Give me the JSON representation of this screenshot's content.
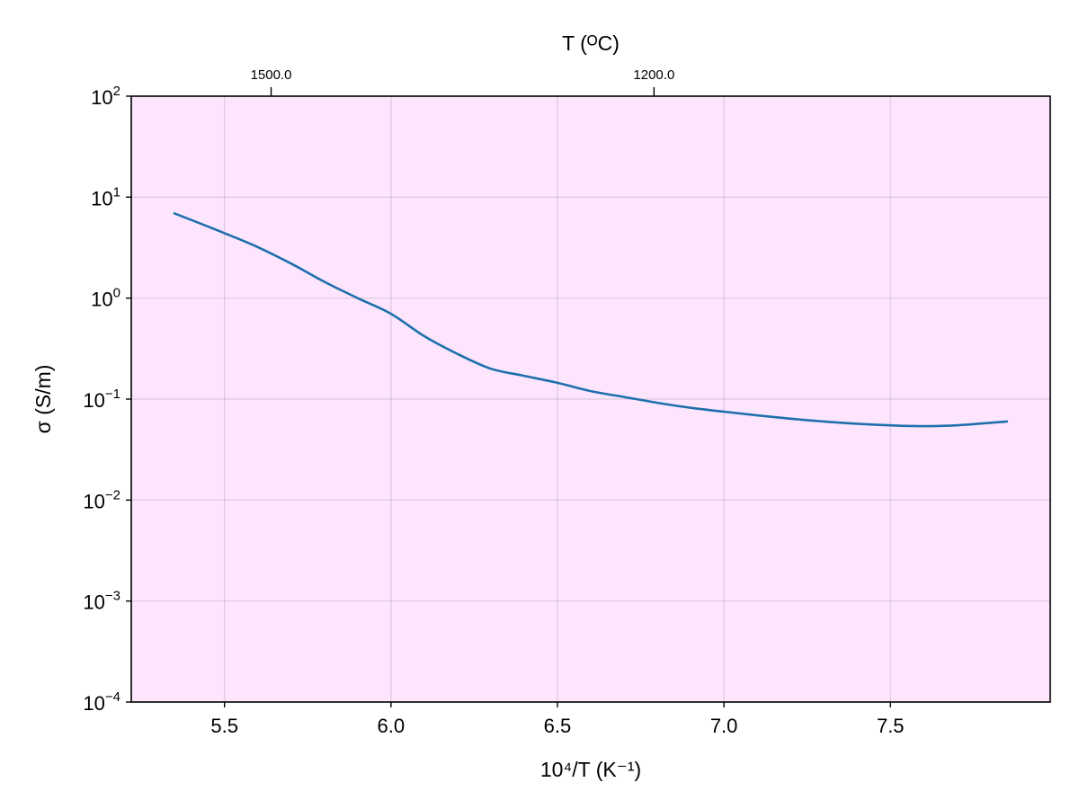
{
  "chart_data": {
    "type": "line",
    "xlabel": "10⁴/T (K⁻¹)",
    "ylabel": "σ (S/m)",
    "top_axis_label": "T (ᴼC)",
    "xlim": [
      5.22,
      7.98
    ],
    "ylim": [
      0.0001,
      100
    ],
    "yscale": "log",
    "grid": true,
    "plot_background": "#fde6fd",
    "line_color": "#1f6fad",
    "x_ticks": [
      5.5,
      6.0,
      6.5,
      7.0,
      7.5
    ],
    "x_tick_labels": [
      "5.5",
      "6.0",
      "6.5",
      "7.0",
      "7.5"
    ],
    "y_ticks": [
      0.0001,
      0.001,
      0.01,
      0.1,
      1,
      10,
      100
    ],
    "y_tick_labels": [
      {
        "base": "10",
        "exp": "−4"
      },
      {
        "base": "10",
        "exp": "−3"
      },
      {
        "base": "10",
        "exp": "−2"
      },
      {
        "base": "10",
        "exp": "−1"
      },
      {
        "base": "10",
        "exp": "0"
      },
      {
        "base": "10",
        "exp": "1"
      },
      {
        "base": "10",
        "exp": "2"
      }
    ],
    "top_ticks": [
      {
        "x": 5.64,
        "label": "1500.0"
      },
      {
        "x": 6.79,
        "label": "1200.0"
      }
    ],
    "series": [
      {
        "x": [
          5.35,
          5.5,
          5.6,
          5.7,
          5.8,
          5.9,
          6.0,
          6.1,
          6.2,
          6.3,
          6.4,
          6.5,
          6.6,
          6.7,
          6.8,
          6.9,
          7.0,
          7.1,
          7.2,
          7.3,
          7.4,
          7.5,
          7.6,
          7.7,
          7.85
        ],
        "y": [
          6.9,
          4.4,
          3.2,
          2.2,
          1.45,
          1.0,
          0.7,
          0.42,
          0.28,
          0.2,
          0.17,
          0.145,
          0.12,
          0.105,
          0.092,
          0.082,
          0.075,
          0.069,
          0.064,
          0.06,
          0.057,
          0.055,
          0.054,
          0.055,
          0.06
        ]
      }
    ]
  }
}
